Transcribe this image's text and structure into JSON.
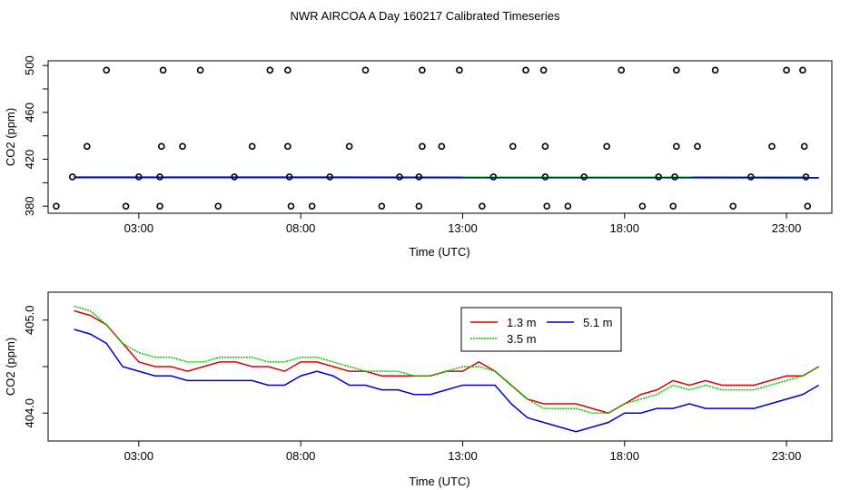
{
  "title": "NWR AIRCOA A  Day 160217  Calibrated Timeseries",
  "chart_data": [
    {
      "type": "scatter",
      "xlabel": "Time (UTC)",
      "ylabel": "CO2 (ppm)",
      "xlim": [
        0.2,
        24.4
      ],
      "ylim": [
        374,
        504
      ],
      "x_tick_values": [
        3,
        8,
        13,
        18,
        23
      ],
      "x_tick_labels": [
        "03:00",
        "08:00",
        "13:00",
        "18:00",
        "23:00"
      ],
      "y_tick_values": [
        380,
        400,
        420,
        440,
        460,
        480,
        500
      ],
      "y_tick_labels": [
        "380",
        "",
        "420",
        "",
        "460",
        "",
        "500"
      ],
      "grid": false,
      "legend": "none",
      "colors": {
        "green": "#00cc00",
        "blue": "#0000cc"
      },
      "baseline_series": [
        {
          "color": "#00cc00",
          "x": [
            1.0,
            24.0
          ],
          "y": [
            404.7,
            404.5
          ]
        },
        {
          "color": "#0000cc",
          "x": [
            1.0,
            24.0
          ],
          "y": [
            404.6,
            404.4
          ]
        }
      ],
      "points": [
        {
          "x": 2.0,
          "y": 496
        },
        {
          "x": 3.75,
          "y": 496
        },
        {
          "x": 4.9,
          "y": 496
        },
        {
          "x": 7.05,
          "y": 496
        },
        {
          "x": 7.6,
          "y": 496
        },
        {
          "x": 10.0,
          "y": 496
        },
        {
          "x": 11.75,
          "y": 496
        },
        {
          "x": 12.9,
          "y": 496
        },
        {
          "x": 14.95,
          "y": 496
        },
        {
          "x": 15.5,
          "y": 496
        },
        {
          "x": 17.9,
          "y": 496
        },
        {
          "x": 19.6,
          "y": 496
        },
        {
          "x": 20.8,
          "y": 496
        },
        {
          "x": 23.0,
          "y": 496
        },
        {
          "x": 23.5,
          "y": 496
        },
        {
          "x": 1.4,
          "y": 431
        },
        {
          "x": 3.7,
          "y": 431
        },
        {
          "x": 4.35,
          "y": 431
        },
        {
          "x": 6.5,
          "y": 431
        },
        {
          "x": 7.6,
          "y": 431
        },
        {
          "x": 9.5,
          "y": 431
        },
        {
          "x": 11.75,
          "y": 431
        },
        {
          "x": 12.35,
          "y": 431
        },
        {
          "x": 14.55,
          "y": 431
        },
        {
          "x": 15.55,
          "y": 431
        },
        {
          "x": 17.45,
          "y": 431
        },
        {
          "x": 19.6,
          "y": 431
        },
        {
          "x": 20.25,
          "y": 431
        },
        {
          "x": 22.55,
          "y": 431
        },
        {
          "x": 23.55,
          "y": 431
        },
        {
          "x": 0.95,
          "y": 405
        },
        {
          "x": 3.0,
          "y": 405
        },
        {
          "x": 3.65,
          "y": 405
        },
        {
          "x": 5.95,
          "y": 405
        },
        {
          "x": 7.65,
          "y": 405
        },
        {
          "x": 8.9,
          "y": 405
        },
        {
          "x": 11.05,
          "y": 405
        },
        {
          "x": 11.65,
          "y": 405
        },
        {
          "x": 13.95,
          "y": 405
        },
        {
          "x": 15.55,
          "y": 405
        },
        {
          "x": 16.75,
          "y": 405
        },
        {
          "x": 19.05,
          "y": 405
        },
        {
          "x": 19.55,
          "y": 405
        },
        {
          "x": 21.9,
          "y": 405
        },
        {
          "x": 23.6,
          "y": 405
        },
        {
          "x": 0.45,
          "y": 380
        },
        {
          "x": 2.6,
          "y": 380
        },
        {
          "x": 3.65,
          "y": 380
        },
        {
          "x": 5.45,
          "y": 380
        },
        {
          "x": 7.7,
          "y": 380
        },
        {
          "x": 8.35,
          "y": 380
        },
        {
          "x": 10.5,
          "y": 380
        },
        {
          "x": 11.65,
          "y": 380
        },
        {
          "x": 13.6,
          "y": 380
        },
        {
          "x": 15.6,
          "y": 380
        },
        {
          "x": 16.25,
          "y": 380
        },
        {
          "x": 18.55,
          "y": 380
        },
        {
          "x": 19.5,
          "y": 380
        },
        {
          "x": 21.35,
          "y": 380
        },
        {
          "x": 23.65,
          "y": 380
        }
      ]
    },
    {
      "type": "line",
      "xlabel": "Time (UTC)",
      "ylabel": "CO2 (ppm)",
      "xlim": [
        0.2,
        24.4
      ],
      "ylim": [
        403.7,
        405.3
      ],
      "x_tick_values": [
        3,
        8,
        13,
        18,
        23
      ],
      "x_tick_labels": [
        "03:00",
        "08:00",
        "13:00",
        "18:00",
        "23:00"
      ],
      "y_tick_values": [
        404.0,
        404.5,
        405.0
      ],
      "y_tick_labels": [
        "404.0",
        "",
        "405.0"
      ],
      "grid": false,
      "legend": "top-center",
      "legend_layout": [
        [
          "1.3 m",
          "5.1 m"
        ],
        [
          "3.5 m",
          ""
        ]
      ],
      "series": [
        {
          "name": "1.3 m",
          "color": "#dd0000",
          "style": "solid",
          "x": [
            1.0,
            1.5,
            2.0,
            2.5,
            3.0,
            3.5,
            4.0,
            4.5,
            5.0,
            5.5,
            6.0,
            6.5,
            7.0,
            7.5,
            8.0,
            8.5,
            9.0,
            9.5,
            10.0,
            10.5,
            11.0,
            11.5,
            12.0,
            12.5,
            13.0,
            13.5,
            14.0,
            14.5,
            15.0,
            15.5,
            16.0,
            16.5,
            17.0,
            17.5,
            18.0,
            18.5,
            19.0,
            19.5,
            20.0,
            20.5,
            21.0,
            21.5,
            22.0,
            22.5,
            23.0,
            23.5,
            24.0
          ],
          "y": [
            405.1,
            405.05,
            404.95,
            404.75,
            404.55,
            404.5,
            404.5,
            404.45,
            404.5,
            404.55,
            404.55,
            404.5,
            404.5,
            404.45,
            404.55,
            404.55,
            404.5,
            404.45,
            404.45,
            404.4,
            404.4,
            404.4,
            404.4,
            404.45,
            404.45,
            404.55,
            404.45,
            404.3,
            404.15,
            404.1,
            404.1,
            404.1,
            404.05,
            404.0,
            404.1,
            404.2,
            404.25,
            404.35,
            404.3,
            404.35,
            404.3,
            404.3,
            404.3,
            404.35,
            404.4,
            404.4,
            404.5
          ]
        },
        {
          "name": "5.1 m",
          "color": "#0000cc",
          "style": "solid",
          "x": [
            1.0,
            1.5,
            2.0,
            2.5,
            3.0,
            3.5,
            4.0,
            4.5,
            5.0,
            5.5,
            6.0,
            6.5,
            7.0,
            7.5,
            8.0,
            8.5,
            9.0,
            9.5,
            10.0,
            10.5,
            11.0,
            11.5,
            12.0,
            12.5,
            13.0,
            13.5,
            14.0,
            14.5,
            15.0,
            15.5,
            16.0,
            16.5,
            17.0,
            17.5,
            18.0,
            18.5,
            19.0,
            19.5,
            20.0,
            20.5,
            21.0,
            21.5,
            22.0,
            22.5,
            23.0,
            23.5,
            24.0
          ],
          "y": [
            404.9,
            404.85,
            404.75,
            404.5,
            404.45,
            404.4,
            404.4,
            404.35,
            404.35,
            404.35,
            404.35,
            404.35,
            404.3,
            404.3,
            404.4,
            404.45,
            404.4,
            404.3,
            404.3,
            404.25,
            404.25,
            404.2,
            404.2,
            404.25,
            404.3,
            404.3,
            404.3,
            404.1,
            403.95,
            403.9,
            403.85,
            403.8,
            403.85,
            403.9,
            404.0,
            404.0,
            404.05,
            404.05,
            404.1,
            404.05,
            404.05,
            404.05,
            404.05,
            404.1,
            404.15,
            404.2,
            404.3
          ]
        },
        {
          "name": "3.5 m",
          "color": "#00cc00",
          "style": "dotted",
          "x": [
            1.0,
            1.5,
            2.0,
            2.5,
            3.0,
            3.5,
            4.0,
            4.5,
            5.0,
            5.5,
            6.0,
            6.5,
            7.0,
            7.5,
            8.0,
            8.5,
            9.0,
            9.5,
            10.0,
            10.5,
            11.0,
            11.5,
            12.0,
            12.5,
            13.0,
            13.5,
            14.0,
            14.5,
            15.0,
            15.5,
            16.0,
            16.5,
            17.0,
            17.5,
            18.0,
            18.5,
            19.0,
            19.5,
            20.0,
            20.5,
            21.0,
            21.5,
            22.0,
            22.5,
            23.0,
            23.5,
            24.0
          ],
          "y": [
            405.15,
            405.1,
            404.95,
            404.75,
            404.65,
            404.6,
            404.6,
            404.55,
            404.55,
            404.6,
            404.6,
            404.6,
            404.55,
            404.55,
            404.6,
            404.6,
            404.55,
            404.5,
            404.45,
            404.45,
            404.45,
            404.4,
            404.4,
            404.45,
            404.5,
            404.5,
            404.45,
            404.3,
            404.15,
            404.05,
            404.05,
            404.05,
            404.0,
            404.0,
            404.1,
            404.15,
            404.2,
            404.3,
            404.25,
            404.3,
            404.25,
            404.25,
            404.25,
            404.3,
            404.35,
            404.4,
            404.5
          ]
        }
      ]
    }
  ]
}
